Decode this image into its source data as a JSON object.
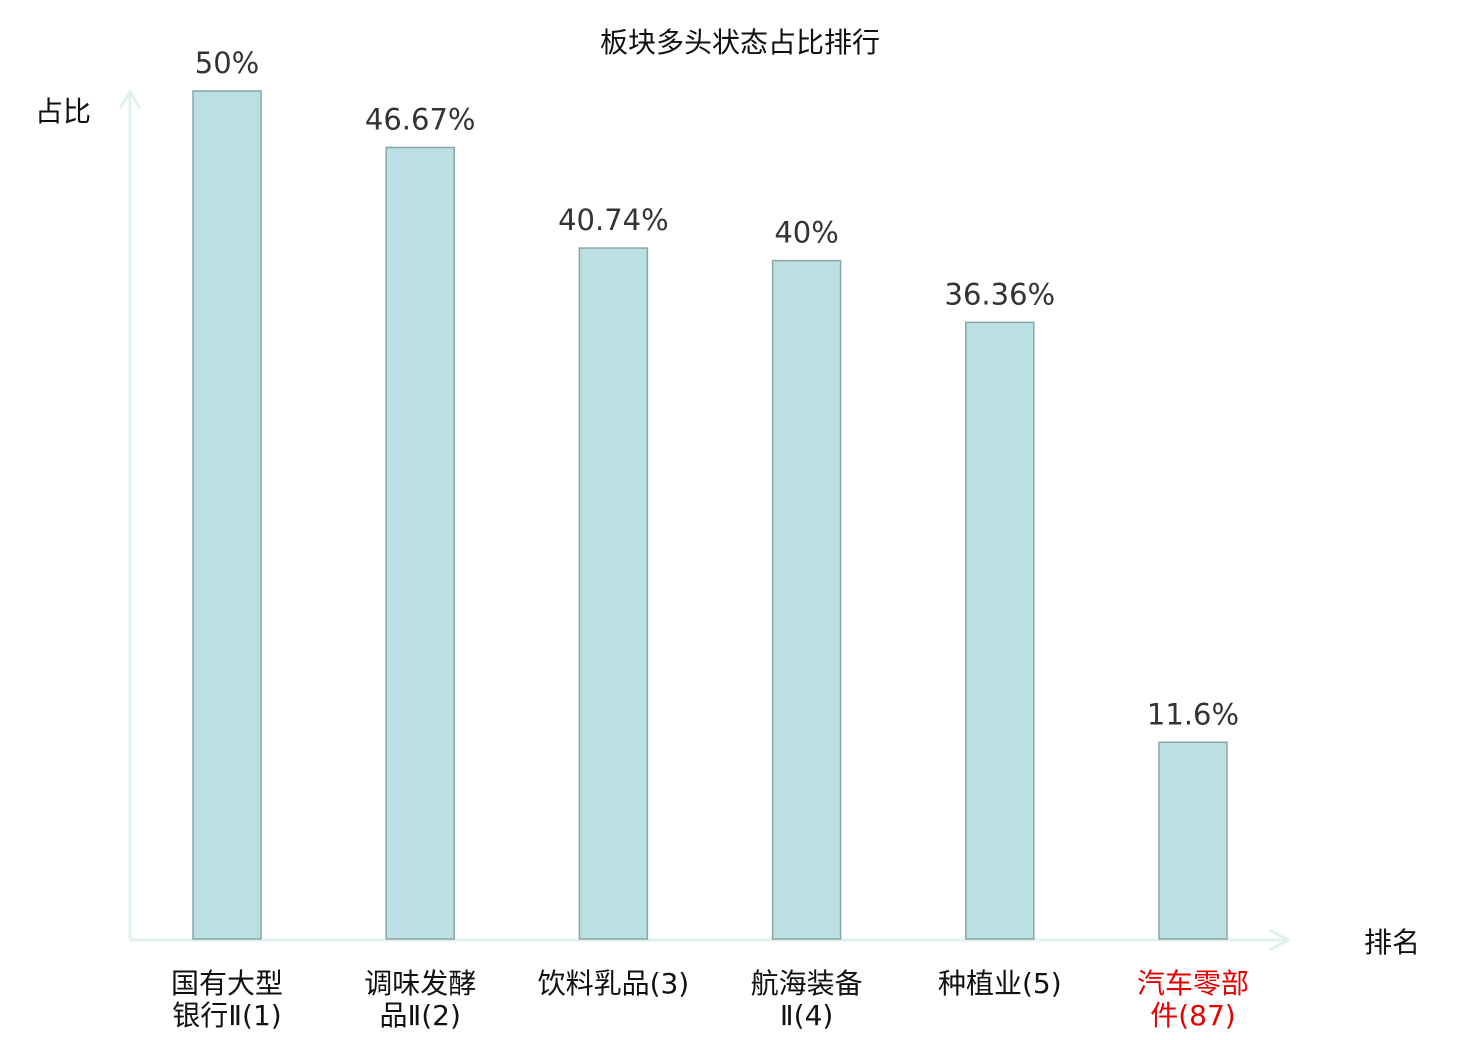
{
  "chart_data": {
    "type": "bar",
    "title": "板块多头状态占比排行",
    "ylabel": "占比",
    "xlabel": "排名",
    "ylim": [
      0,
      50
    ],
    "grid": false,
    "categories": [
      {
        "lines": [
          "国有大型",
          "银行Ⅱ(1)"
        ],
        "highlight": false
      },
      {
        "lines": [
          "调味发酵",
          "品Ⅱ(2)"
        ],
        "highlight": false
      },
      {
        "lines": [
          "饮料乳品(3)"
        ],
        "highlight": false
      },
      {
        "lines": [
          "航海装备",
          "Ⅱ(4)"
        ],
        "highlight": false
      },
      {
        "lines": [
          "种植业(5)"
        ],
        "highlight": false
      },
      {
        "lines": [
          "汽车零部",
          "件(87)"
        ],
        "highlight": true
      }
    ],
    "values": [
      50,
      46.67,
      40.74,
      40,
      36.36,
      11.6
    ],
    "value_labels": [
      "50%",
      "46.67%",
      "40.74%",
      "40%",
      "36.36%",
      "11.6%"
    ],
    "colors": {
      "bar_fill": "#bbe0e3",
      "bar_stroke": "#8aa5a7",
      "axis": "#dff2ef",
      "label": "#333333",
      "category": "#111111",
      "highlight": "#e60000"
    }
  }
}
